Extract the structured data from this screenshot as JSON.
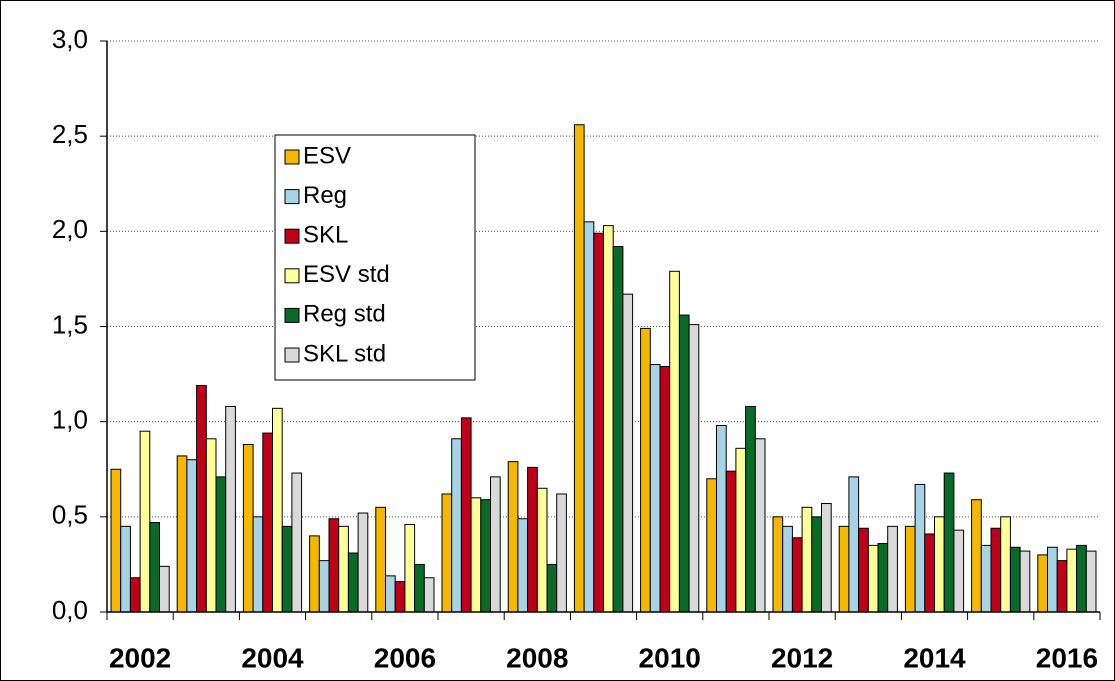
{
  "chart_data": {
    "type": "bar",
    "categories": [
      "2002",
      null,
      "2004",
      null,
      "2006",
      null,
      "2008",
      null,
      "2010",
      null,
      "2012",
      null,
      "2014",
      null,
      "2016"
    ],
    "series": [
      {
        "name": "ESV",
        "color": "#f5b800",
        "values": [
          0.75,
          0.82,
          0.88,
          0.4,
          0.55,
          0.62,
          0.79,
          2.56,
          1.49,
          0.7,
          0.5,
          0.45,
          0.45,
          0.59,
          0.3
        ]
      },
      {
        "name": "Reg",
        "color": "#a6d4e6",
        "values": [
          0.45,
          0.8,
          0.5,
          0.27,
          0.19,
          0.91,
          0.49,
          2.05,
          1.3,
          0.98,
          0.45,
          0.71,
          0.67,
          0.35,
          0.34
        ]
      },
      {
        "name": "SKL",
        "color": "#c00018",
        "values": [
          0.18,
          1.19,
          0.94,
          0.49,
          0.16,
          1.02,
          0.76,
          1.99,
          1.29,
          0.74,
          0.39,
          0.44,
          0.41,
          0.44,
          0.27
        ]
      },
      {
        "name": "ESV std",
        "color": "#ffff99",
        "values": [
          0.95,
          0.91,
          1.07,
          0.45,
          0.46,
          0.6,
          0.65,
          2.03,
          1.79,
          0.86,
          0.55,
          0.35,
          0.5,
          0.5,
          0.33
        ]
      },
      {
        "name": "Reg std",
        "color": "#0a6a2a",
        "values": [
          0.47,
          0.71,
          0.45,
          0.31,
          0.25,
          0.59,
          0.25,
          1.92,
          1.56,
          1.08,
          0.5,
          0.36,
          0.73,
          0.34,
          0.35
        ]
      },
      {
        "name": "SKL std",
        "color": "#d9d9d9",
        "values": [
          0.24,
          1.08,
          0.73,
          0.52,
          0.18,
          0.71,
          0.62,
          1.67,
          1.51,
          0.91,
          0.57,
          0.45,
          0.43,
          0.32,
          0.32
        ]
      }
    ],
    "ylim": [
      0,
      3
    ],
    "yticks": [
      {
        "value": 0,
        "label": "0,0"
      },
      {
        "value": 0.5,
        "label": "0,5"
      },
      {
        "value": 1,
        "label": "1,0"
      },
      {
        "value": 1.5,
        "label": "1,5"
      },
      {
        "value": 2,
        "label": "2,0"
      },
      {
        "value": 2.5,
        "label": "2,5"
      },
      {
        "value": 3,
        "label": "3,0"
      }
    ],
    "grid": true,
    "legend": "upper left"
  }
}
